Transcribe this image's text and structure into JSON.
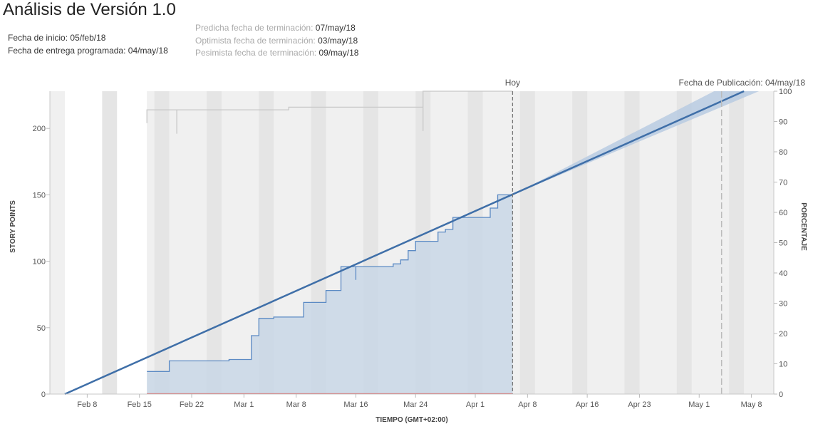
{
  "header": {
    "title": "Análisis de Versión 1.0",
    "start_label": "Fecha de inicio:",
    "start_value": "05/feb/18",
    "due_label": "Fecha de entrega programada:",
    "due_value": "04/may/18",
    "predicted_label": "Predicha fecha de terminación:",
    "predicted_value": "07/may/18",
    "optimistic_label": "Optimista fecha de terminación:",
    "optimistic_value": "03/may/18",
    "pessimistic_label": "Pesimista fecha de terminación:",
    "pessimistic_value": "09/may/18"
  },
  "colors": {
    "band_dark": "#e5e5e5",
    "band_light": "#f0f0f0",
    "completed_fill": "#c9d7e6",
    "completed_line": "#5b8ac4",
    "trend_line": "#3f6fa8",
    "trend_band": "#b8cbe2",
    "scope_line": "#c8c8c8",
    "baseline": "#e05555"
  },
  "chart_data": {
    "type": "area",
    "xlabel": "TIEMPO (GMT+02:00)",
    "ylabel": "STORY POINTS",
    "y2label": "PORCENTAJE",
    "xlim": [
      "2018-02-03",
      "2018-05-11"
    ],
    "ylim": [
      0,
      228
    ],
    "y2lim": [
      0,
      100
    ],
    "x_ticks": [
      {
        "date": "2018-02-08",
        "label": "Feb 8"
      },
      {
        "date": "2018-02-15",
        "label": "Feb 15"
      },
      {
        "date": "2018-02-22",
        "label": "Feb 22"
      },
      {
        "date": "2018-03-01",
        "label": "Mar 1"
      },
      {
        "date": "2018-03-08",
        "label": "Mar 8"
      },
      {
        "date": "2018-03-16",
        "label": "Mar 16"
      },
      {
        "date": "2018-03-24",
        "label": "Mar 24"
      },
      {
        "date": "2018-04-01",
        "label": "Apr 1"
      },
      {
        "date": "2018-04-08",
        "label": "Apr 8"
      },
      {
        "date": "2018-04-16",
        "label": "Apr 16"
      },
      {
        "date": "2018-04-23",
        "label": "Apr 23"
      },
      {
        "date": "2018-05-01",
        "label": "May 1"
      },
      {
        "date": "2018-05-08",
        "label": "May 8"
      }
    ],
    "y_ticks": [
      0,
      50,
      100,
      150,
      200
    ],
    "y2_ticks": [
      0,
      10,
      20,
      30,
      40,
      50,
      60,
      70,
      80,
      90,
      100
    ],
    "weekend_bands_dark": [
      "2018-02-10",
      "2018-02-17",
      "2018-02-24",
      "2018-03-03",
      "2018-03-10",
      "2018-03-17",
      "2018-03-24",
      "2018-03-31",
      "2018-04-07",
      "2018-04-14",
      "2018-04-21",
      "2018-04-28",
      "2018-05-05"
    ],
    "today": {
      "date": "2018-04-06",
      "label": "Hoy"
    },
    "release": {
      "date": "2018-05-04",
      "label": "Fecha de Publicación: 04/may/18"
    },
    "completed": [
      {
        "x": "2018-02-16",
        "y": 0
      },
      {
        "x": "2018-02-16",
        "y": 17
      },
      {
        "x": "2018-02-19",
        "y": 17
      },
      {
        "x": "2018-02-19",
        "y": 25
      },
      {
        "x": "2018-02-27",
        "y": 25
      },
      {
        "x": "2018-02-27",
        "y": 26
      },
      {
        "x": "2018-03-02",
        "y": 26
      },
      {
        "x": "2018-03-02",
        "y": 44
      },
      {
        "x": "2018-03-03",
        "y": 44
      },
      {
        "x": "2018-03-03",
        "y": 57
      },
      {
        "x": "2018-03-05",
        "y": 57
      },
      {
        "x": "2018-03-05",
        "y": 58
      },
      {
        "x": "2018-03-09",
        "y": 58
      },
      {
        "x": "2018-03-09",
        "y": 69
      },
      {
        "x": "2018-03-12",
        "y": 69
      },
      {
        "x": "2018-03-12",
        "y": 78
      },
      {
        "x": "2018-03-14",
        "y": 78
      },
      {
        "x": "2018-03-14",
        "y": 96
      },
      {
        "x": "2018-03-16",
        "y": 96
      },
      {
        "x": "2018-03-16",
        "y": 86
      },
      {
        "x": "2018-03-16",
        "y": 96
      },
      {
        "x": "2018-03-21",
        "y": 96
      },
      {
        "x": "2018-03-21",
        "y": 98
      },
      {
        "x": "2018-03-22",
        "y": 98
      },
      {
        "x": "2018-03-22",
        "y": 101
      },
      {
        "x": "2018-03-23",
        "y": 101
      },
      {
        "x": "2018-03-23",
        "y": 108
      },
      {
        "x": "2018-03-24",
        "y": 108
      },
      {
        "x": "2018-03-24",
        "y": 115
      },
      {
        "x": "2018-03-27",
        "y": 115
      },
      {
        "x": "2018-03-27",
        "y": 122
      },
      {
        "x": "2018-03-28",
        "y": 122
      },
      {
        "x": "2018-03-28",
        "y": 124
      },
      {
        "x": "2018-03-29",
        "y": 124
      },
      {
        "x": "2018-03-29",
        "y": 133
      },
      {
        "x": "2018-04-03",
        "y": 133
      },
      {
        "x": "2018-04-03",
        "y": 140
      },
      {
        "x": "2018-04-04",
        "y": 140
      },
      {
        "x": "2018-04-04",
        "y": 150
      },
      {
        "x": "2018-04-06",
        "y": 150
      },
      {
        "x": "2018-04-06",
        "y": 0
      }
    ],
    "scope": [
      {
        "x": "2018-02-16",
        "y": 204
      },
      {
        "x": "2018-02-16",
        "y": 214
      },
      {
        "x": "2018-02-20",
        "y": 214
      },
      {
        "x": "2018-02-20",
        "y": 196
      },
      {
        "x": "2018-02-20",
        "y": 214
      },
      {
        "x": "2018-03-07",
        "y": 214
      },
      {
        "x": "2018-03-07",
        "y": 216
      },
      {
        "x": "2018-03-25",
        "y": 216
      },
      {
        "x": "2018-03-25",
        "y": 198
      },
      {
        "x": "2018-03-25",
        "y": 228
      },
      {
        "x": "2018-04-06",
        "y": 228
      }
    ],
    "trend": {
      "start": {
        "x": "2018-02-05",
        "y": 0
      },
      "end": {
        "x": "2018-05-07",
        "y": 228
      }
    },
    "trend_band": {
      "from": "2018-04-06",
      "y_at_from": 150,
      "end_low": {
        "x": "2018-05-09",
        "y": 228
      },
      "end_high": {
        "x": "2018-05-03",
        "y": 228
      }
    }
  }
}
